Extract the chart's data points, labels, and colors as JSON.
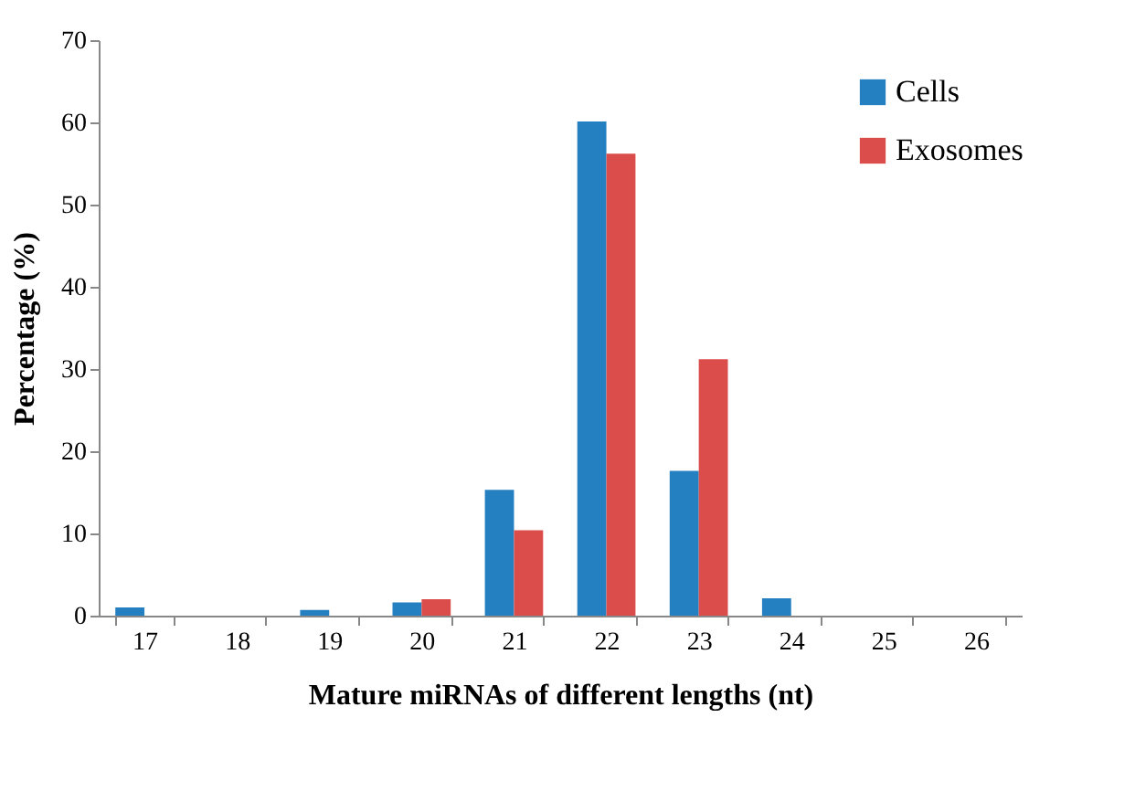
{
  "chart_data": {
    "type": "bar",
    "xlabel": "Mature miRNAs of different lengths (nt)",
    "ylabel": "Percentage (%)",
    "categories": [
      "17",
      "18",
      "19",
      "20",
      "21",
      "22",
      "23",
      "24",
      "25",
      "26"
    ],
    "series": [
      {
        "name": "Cells",
        "color": "#2580c2",
        "values": [
          1.0,
          0,
          0.7,
          1.6,
          15.3,
          60.1,
          17.6,
          2.1,
          0,
          0
        ]
      },
      {
        "name": "Exosomes",
        "color": "#db4d4b",
        "values": [
          0,
          0,
          0,
          2.0,
          10.4,
          56.2,
          31.2,
          0,
          0,
          0
        ]
      }
    ],
    "ylim": [
      0,
      70
    ],
    "yticks": [
      0,
      10,
      20,
      30,
      40,
      50,
      60,
      70
    ],
    "grid": false,
    "legend": "top right"
  }
}
